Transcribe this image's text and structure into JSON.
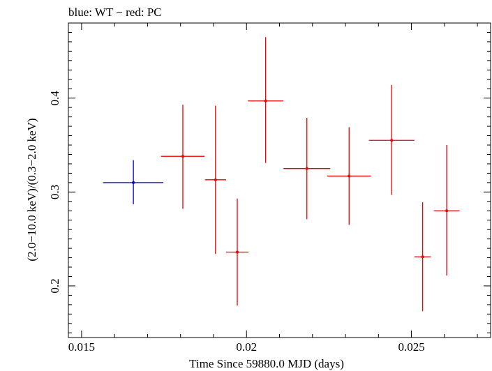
{
  "chart_data": {
    "type": "scatter",
    "title": "blue: WT − red: PC",
    "xlabel": "Time Since 59880.0 MJD (days)",
    "ylabel": "(2.0−10.0 keV)/(0.3−2.0 keV)",
    "xlim": [
      0.0146,
      0.0274
    ],
    "ylim": [
      0.145,
      0.48
    ],
    "x_ticks": [
      0.015,
      0.02,
      0.025
    ],
    "x_tick_labels": [
      "0.015",
      "0.02",
      "0.025"
    ],
    "y_ticks": [
      0.2,
      0.3,
      0.4
    ],
    "y_tick_labels": [
      "0.2",
      "0.3",
      "0.4"
    ],
    "grid": false,
    "series": [
      {
        "name": "WT",
        "color": "#0000cc",
        "points": [
          {
            "x": 0.01657,
            "y": 0.31,
            "xerr": [
              0.00092,
              0.00091
            ],
            "yerr": [
              0.023,
              0.024
            ]
          }
        ]
      },
      {
        "name": "PC",
        "color": "#ee0000",
        "points": [
          {
            "x": 0.01807,
            "y": 0.338,
            "xerr": [
              0.00066,
              0.00066
            ],
            "yerr": [
              0.056,
              0.055
            ]
          },
          {
            "x": 0.01906,
            "y": 0.313,
            "xerr": [
              0.00032,
              0.00032
            ],
            "yerr": [
              0.079,
              0.079
            ]
          },
          {
            "x": 0.01972,
            "y": 0.236,
            "xerr": [
              0.00034,
              0.00034
            ],
            "yerr": [
              0.057,
              0.057
            ]
          },
          {
            "x": 0.02058,
            "y": 0.397,
            "xerr": [
              0.00054,
              0.00054
            ],
            "yerr": [
              0.066,
              0.068
            ]
          },
          {
            "x": 0.02183,
            "y": 0.325,
            "xerr": [
              0.00071,
              0.00071
            ],
            "yerr": [
              0.054,
              0.054
            ]
          },
          {
            "x": 0.02311,
            "y": 0.317,
            "xerr": [
              0.00066,
              0.00066
            ],
            "yerr": [
              0.052,
              0.052
            ]
          },
          {
            "x": 0.0244,
            "y": 0.355,
            "xerr": [
              0.00069,
              0.00069
            ],
            "yerr": [
              0.058,
              0.059
            ]
          },
          {
            "x": 0.02534,
            "y": 0.231,
            "xerr": [
              0.00025,
              0.00025
            ],
            "yerr": [
              0.058,
              0.058
            ]
          },
          {
            "x": 0.02607,
            "y": 0.28,
            "xerr": [
              0.00039,
              0.00039
            ],
            "yerr": [
              0.069,
              0.07
            ]
          }
        ]
      }
    ]
  }
}
